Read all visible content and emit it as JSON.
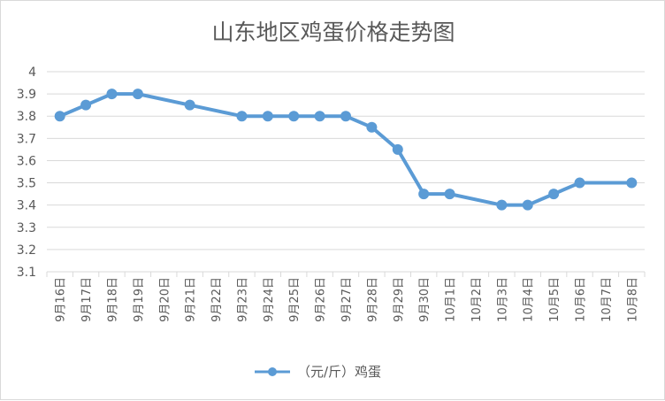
{
  "chart_data": {
    "type": "line",
    "title": "山东地区鸡蛋价格走势图",
    "categories": [
      "9月16日",
      "9月17日",
      "9月18日",
      "9月19日",
      "9月20日",
      "9月21日",
      "9月22日",
      "9月23日",
      "9月24日",
      "9月25日",
      "9月26日",
      "9月27日",
      "9月28日",
      "9月29日",
      "9月30日",
      "10月1日",
      "10月2日",
      "10月3日",
      "10月4日",
      "10月5日",
      "10月6日",
      "10月7日",
      "10月8日"
    ],
    "series": [
      {
        "name": "（元/斤）鸡蛋",
        "values": [
          3.8,
          3.85,
          3.9,
          3.9,
          null,
          3.85,
          null,
          3.8,
          3.8,
          3.8,
          3.8,
          3.8,
          3.75,
          3.65,
          3.45,
          3.45,
          null,
          3.4,
          3.4,
          3.45,
          3.5,
          null,
          3.5
        ],
        "color": "#5b9bd5"
      }
    ],
    "ylim": [
      3.1,
      4.0
    ],
    "yticks": [
      "3.1",
      "3.2",
      "3.3",
      "3.4",
      "3.5",
      "3.6",
      "3.7",
      "3.8",
      "3.9",
      "4"
    ],
    "grid": true,
    "legend": "bottom"
  }
}
